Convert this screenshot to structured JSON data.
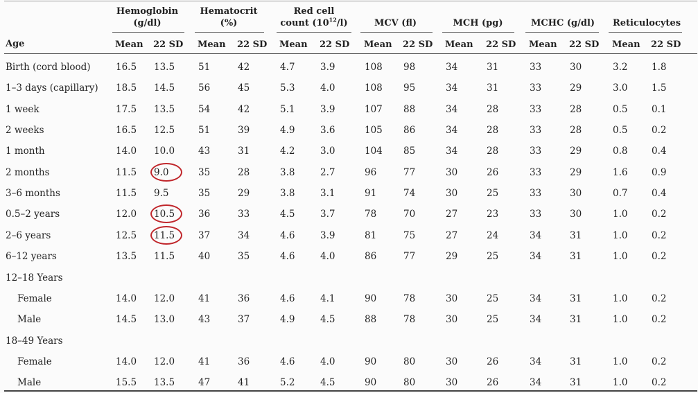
{
  "headers": {
    "age": "Age",
    "groups": [
      {
        "line1": "Hemoglobin",
        "line2": "(g/dl)"
      },
      {
        "line1": "Hematocrit",
        "line2": "(%)"
      },
      {
        "line1": "Red cell",
        "line2a": "count (10",
        "line2sup": "12",
        "line2b": "/l)"
      },
      {
        "line1": "MCV (fl)"
      },
      {
        "line1": "MCH (pg)"
      },
      {
        "line1": "MCHC (g/dl)"
      },
      {
        "line1": "Reticulocytes"
      }
    ],
    "sub": [
      "Mean",
      "22 SD"
    ]
  },
  "rows": [
    {
      "age": "Birth (cord blood)",
      "values": [
        "16.5",
        "13.5",
        "51",
        "42",
        "4.7",
        "3.9",
        "108",
        "98",
        "34",
        "31",
        "33",
        "30",
        "3.2",
        "1.8"
      ]
    },
    {
      "age": "1–3 days (capillary)",
      "values": [
        "18.5",
        "14.5",
        "56",
        "45",
        "5.3",
        "4.0",
        "108",
        "95",
        "34",
        "31",
        "33",
        "29",
        "3.0",
        "1.5"
      ]
    },
    {
      "age": "1 week",
      "values": [
        "17.5",
        "13.5",
        "54",
        "42",
        "5.1",
        "3.9",
        "107",
        "88",
        "34",
        "28",
        "33",
        "28",
        "0.5",
        "0.1"
      ]
    },
    {
      "age": "2 weeks",
      "values": [
        "16.5",
        "12.5",
        "51",
        "39",
        "4.9",
        "3.6",
        "105",
        "86",
        "34",
        "28",
        "33",
        "28",
        "0.5",
        "0.2"
      ]
    },
    {
      "age": "1 month",
      "values": [
        "14.0",
        "10.0",
        "43",
        "31",
        "4.2",
        "3.0",
        "104",
        "85",
        "34",
        "28",
        "33",
        "29",
        "0.8",
        "0.4"
      ]
    },
    {
      "age": "2 months",
      "values": [
        "11.5",
        "9.0",
        "35",
        "28",
        "3.8",
        "2.7",
        "96",
        "77",
        "30",
        "26",
        "33",
        "29",
        "1.6",
        "0.9"
      ]
    },
    {
      "age": "3–6 months",
      "values": [
        "11.5",
        "9.5",
        "35",
        "29",
        "3.8",
        "3.1",
        "91",
        "74",
        "30",
        "25",
        "33",
        "30",
        "0.7",
        "0.4"
      ]
    },
    {
      "age": "0.5–2 years",
      "values": [
        "12.0",
        "10.5",
        "36",
        "33",
        "4.5",
        "3.7",
        "78",
        "70",
        "27",
        "23",
        "33",
        "30",
        "1.0",
        "0.2"
      ]
    },
    {
      "age": "2–6 years",
      "values": [
        "12.5",
        "11.5",
        "37",
        "34",
        "4.6",
        "3.9",
        "81",
        "75",
        "27",
        "24",
        "34",
        "31",
        "1.0",
        "0.2"
      ]
    },
    {
      "age": "6–12 years",
      "values": [
        "13.5",
        "11.5",
        "40",
        "35",
        "4.6",
        "4.0",
        "86",
        "77",
        "29",
        "25",
        "34",
        "31",
        "1.0",
        "0.2"
      ]
    },
    {
      "age": "12–18 Years",
      "values": []
    },
    {
      "age": "Female",
      "indent": true,
      "values": [
        "14.0",
        "12.0",
        "41",
        "36",
        "4.6",
        "4.1",
        "90",
        "78",
        "30",
        "25",
        "34",
        "31",
        "1.0",
        "0.2"
      ]
    },
    {
      "age": "Male",
      "indent": true,
      "values": [
        "14.5",
        "13.0",
        "43",
        "37",
        "4.9",
        "4.5",
        "88",
        "78",
        "30",
        "25",
        "34",
        "31",
        "1.0",
        "0.2"
      ]
    },
    {
      "age": "18–49 Years",
      "values": []
    },
    {
      "age": "Female",
      "indent": true,
      "values": [
        "14.0",
        "12.0",
        "41",
        "36",
        "4.6",
        "4.0",
        "90",
        "80",
        "30",
        "26",
        "34",
        "31",
        "1.0",
        "0.2"
      ]
    },
    {
      "age": "Male",
      "indent": true,
      "values": [
        "15.5",
        "13.5",
        "47",
        "41",
        "5.2",
        "4.5",
        "90",
        "80",
        "30",
        "26",
        "34",
        "31",
        "1.0",
        "0.2"
      ]
    }
  ],
  "highlighted_cells": [
    {
      "row": 5,
      "col": 1
    },
    {
      "row": 7,
      "col": 1
    },
    {
      "row": 8,
      "col": 1
    }
  ],
  "colors": {
    "highlight": "#c0262b",
    "text": "#222222",
    "background": "#fbfbfb"
  }
}
